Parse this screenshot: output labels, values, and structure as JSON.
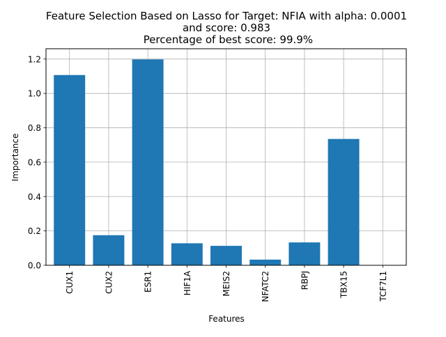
{
  "chart_data": {
    "type": "bar",
    "title_lines": [
      "Feature Selection Based on Lasso for Target: NFIA with alpha: 0.0001",
      "and score: 0.983",
      " Percentage of best score: 99.9%"
    ],
    "xlabel": "Features",
    "ylabel": "Importance",
    "categories": [
      "CUX1",
      "CUX2",
      "ESR1",
      "HIF1A",
      "MEIS2",
      "NFATC2",
      "RBPJ",
      "TBX15",
      "TCF7L1"
    ],
    "values": [
      1.107,
      0.175,
      1.198,
      0.128,
      0.113,
      0.033,
      0.133,
      0.735,
      0.0
    ],
    "ylim": [
      0,
      1.26
    ],
    "yticks": [
      0.0,
      0.2,
      0.4,
      0.6,
      0.8,
      1.0,
      1.2
    ],
    "ytick_labels": [
      "0.0",
      "0.2",
      "0.4",
      "0.6",
      "0.8",
      "1.0",
      "1.2"
    ],
    "grid": true,
    "bar_color": "#1f77b4"
  }
}
